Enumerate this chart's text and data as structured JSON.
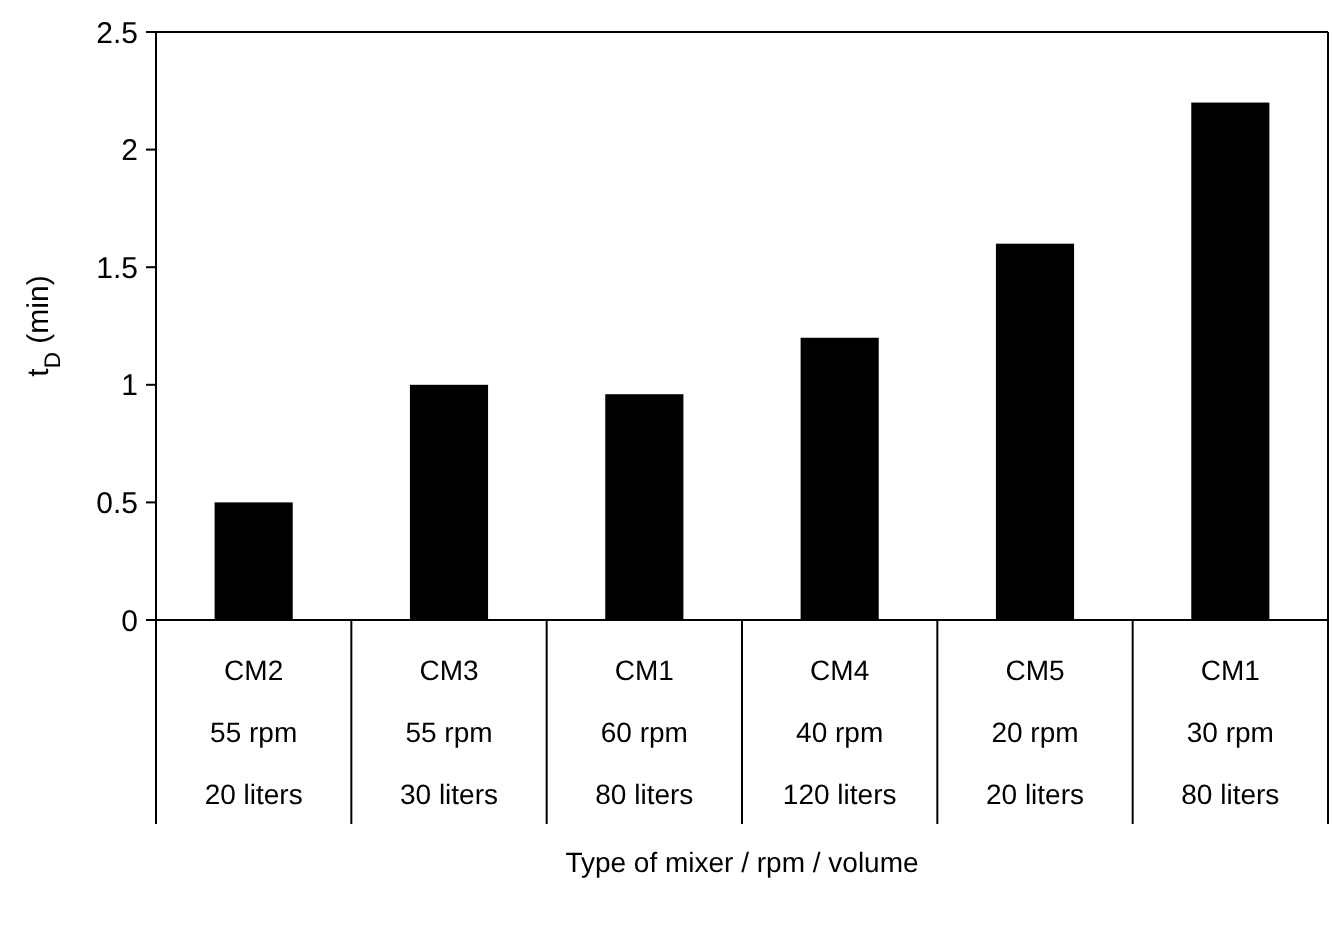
{
  "chart_data": {
    "type": "bar",
    "xlabel": "Type of mixer / rpm / volume",
    "ylabel": "t$_{D}$ (min)",
    "categories": [
      "CM2\n55 rpm\n20 liters",
      "CM3\n55 rpm\n30 liters",
      "CM1\n60 rpm\n80 liters",
      "CM4\n40 rpm\n120 liters",
      "CM5\n20 rpm\n20 liters",
      "CM1\n30 rpm\n80 liters"
    ],
    "values": [
      0.5,
      1.0,
      0.96,
      1.2,
      1.6,
      2.2
    ],
    "color": "#000000",
    "ylim": [
      0,
      2.5
    ],
    "yticks": [
      0,
      0.5,
      1,
      {
        "value": 1.5,
        "label": "1.5"
      },
      2,
      2.5
    ],
    "grid": false
  }
}
